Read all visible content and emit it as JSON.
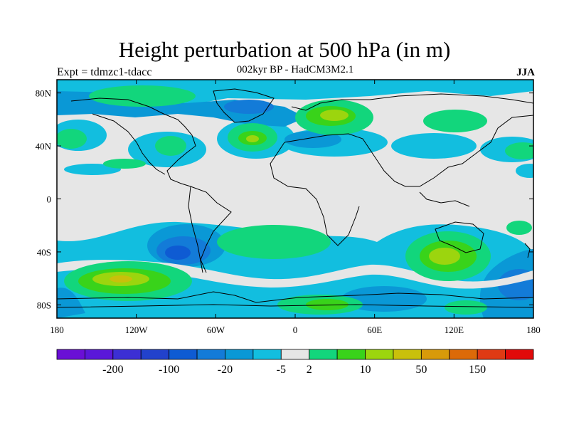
{
  "header": {
    "title": "Height perturbation at 500 hPa (in m)",
    "subtitle": "002kyr BP - HadCM3M2.1",
    "left_label": "Expt = tdmzc1-tdacc",
    "right_label": "JJA"
  },
  "map": {
    "projection": "cylindrical-equidistant",
    "lon_range": [
      -180,
      180
    ],
    "lat_range": [
      -90,
      90
    ],
    "background_color": "#e6e6e6",
    "lon_ticks": [
      {
        "value": -180,
        "label": "180"
      },
      {
        "value": -120,
        "label": "120W"
      },
      {
        "value": -60,
        "label": "60W"
      },
      {
        "value": 0,
        "label": "0"
      },
      {
        "value": 60,
        "label": "60E"
      },
      {
        "value": 120,
        "label": "120E"
      },
      {
        "value": 180,
        "label": "180"
      }
    ],
    "lat_ticks": [
      {
        "value": 80,
        "label": "80N"
      },
      {
        "value": 40,
        "label": "40N"
      },
      {
        "value": 0,
        "label": "0"
      },
      {
        "value": -40,
        "label": "40S"
      },
      {
        "value": -80,
        "label": "80S"
      }
    ]
  },
  "colorbar": {
    "colors": [
      "#6a0fd6",
      "#5a17d9",
      "#3c2fd4",
      "#2242cc",
      "#0e5bd3",
      "#137bd8",
      "#0a98d6",
      "#12bedf",
      "#e6e6e6",
      "#12d67c",
      "#39d31a",
      "#9cd50e",
      "#c9c00b",
      "#d89a0a",
      "#dc6a08",
      "#df3a14",
      "#e10a0a"
    ],
    "labels": [
      {
        "after_box": 2,
        "text": "-200"
      },
      {
        "after_box": 4,
        "text": "-100"
      },
      {
        "after_box": 6,
        "text": "-20"
      },
      {
        "after_box": 8,
        "text": "-5"
      },
      {
        "after_box": 9,
        "text": "2"
      },
      {
        "after_box": 11,
        "text": "10"
      },
      {
        "after_box": 13,
        "text": "50"
      },
      {
        "after_box": 15,
        "text": "150"
      }
    ]
  }
}
